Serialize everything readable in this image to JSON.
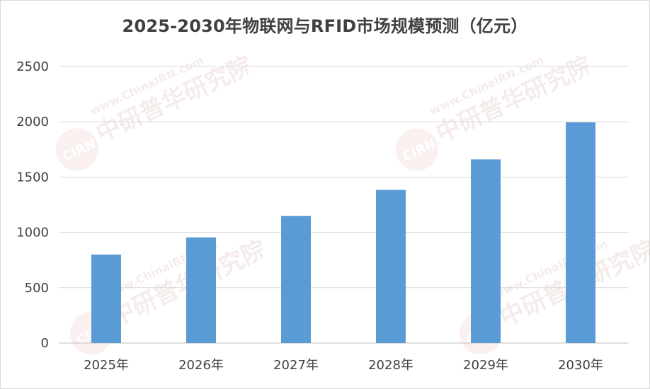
{
  "chart_data": {
    "type": "bar",
    "title": "2025-2030年物联网与RFID市场规模预测（亿元）",
    "categories": [
      "2025年",
      "2026年",
      "2027年",
      "2028年",
      "2029年",
      "2030年"
    ],
    "values": [
      800,
      955,
      1150,
      1385,
      1660,
      1995
    ],
    "ylim": [
      0,
      2500
    ],
    "yticks": [
      0,
      500,
      1000,
      1500,
      2000,
      2500
    ],
    "grid": true,
    "legend": "none",
    "bar_color": "#5b9bd5"
  },
  "watermark": {
    "brand_cn": "中研普华研究院",
    "brand_url": "www.ChinaIRN.com",
    "logo_text": "CIRN",
    "color": "#d9a0a0"
  }
}
